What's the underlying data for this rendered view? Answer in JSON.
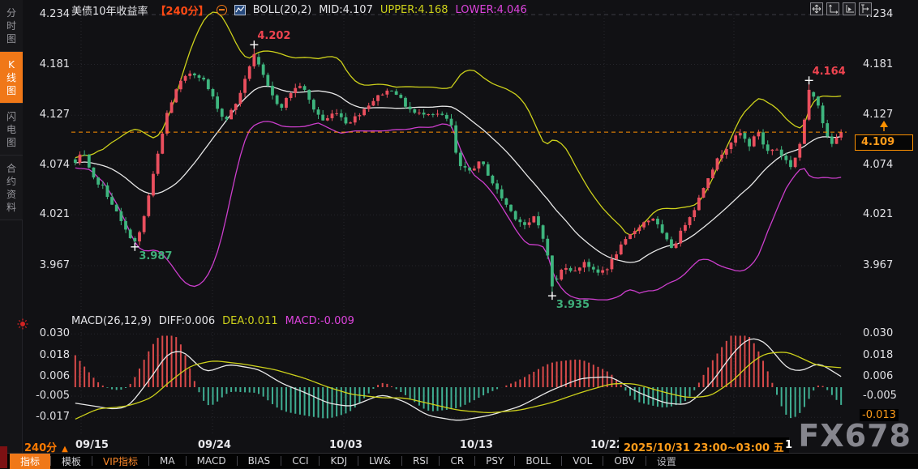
{
  "header": {
    "title": "美债10年收益率",
    "period_tag": "【240分】",
    "boll": "BOLL(20,2)",
    "mid": "MID:4.107",
    "upper": "UPPER:4.168",
    "lower": "LOWER:4.046"
  },
  "sidebar": {
    "active": 1,
    "items": [
      "分时图",
      "K线图",
      "闪电图",
      "合约资料"
    ]
  },
  "axes": {
    "main_left": [
      "4.234",
      "4.181",
      "4.127",
      "4.074",
      "4.021",
      "3.967"
    ],
    "main_right": [
      "4.234",
      "4.181",
      "4.127",
      "4.074",
      "4.021",
      "3.967"
    ],
    "macd_left": [
      "0.030",
      "0.018",
      "0.006",
      "-0.005",
      "-0.017"
    ],
    "macd_right": [
      "0.030",
      "0.018",
      "0.006",
      "-0.005"
    ],
    "macd_right_badge": "-0.013"
  },
  "price_badge": "4.109",
  "macd_header": {
    "label": "MACD(26,12,9)",
    "diff": "DIFF:0.006",
    "dea": "DEA:0.011",
    "macd": "MACD:-0.009"
  },
  "footer": {
    "period": "240分",
    "dates": [
      "09/15",
      "09/24",
      "10/03",
      "10/13",
      "10/22"
    ],
    "crosshair_badge": "2025/10/31 23:00~03:00 五",
    "trailing": "1",
    "watermark": "FX678"
  },
  "toolbar": {
    "items": [
      {
        "label": "指标",
        "state": "selected"
      },
      {
        "label": "模板"
      },
      {
        "label": "VIP指标",
        "state": "vip"
      },
      {
        "label": "MA"
      },
      {
        "label": "MACD"
      },
      {
        "label": "BIAS"
      },
      {
        "label": "CCI"
      },
      {
        "label": "KDJ"
      },
      {
        "label": "LW&"
      },
      {
        "label": "RSI"
      },
      {
        "label": "CR"
      },
      {
        "label": "PSY"
      },
      {
        "label": "BOLL"
      },
      {
        "label": "VOL"
      },
      {
        "label": "OBV"
      },
      {
        "label": "设置",
        "state": "dim"
      }
    ]
  },
  "colors": {
    "up": "#ea4f5e",
    "down": "#3eb57e",
    "boll_upper": "#cdd11b",
    "boll_mid": "#e8e8e8",
    "boll_lower": "#cc3ecc",
    "hist_up": "#d94a4a",
    "hist_down": "#3fae92",
    "diff_line": "#e8e8e8",
    "dea_line": "#cdd11b",
    "accent_orange": "#ff9100",
    "grid": "#26262c",
    "cross": "#ffffff",
    "ann_high": "#ef4450",
    "ann_low": "#3fae7a"
  },
  "chart_data": [
    {
      "type": "candlestick",
      "title": "美债10年收益率 240分",
      "y_ticks": [
        4.234,
        4.181,
        4.127,
        4.074,
        4.021,
        3.967
      ],
      "x_ticks": [
        "09/15",
        "09/24",
        "10/03",
        "10/13",
        "10/22",
        "10/31"
      ],
      "ylim": [
        3.935,
        4.234
      ],
      "last_price": 4.109,
      "boll": {
        "period": 20,
        "dev": 2,
        "mid": 4.107,
        "upper": 4.168,
        "lower": 4.046
      },
      "key_points": [
        {
          "t": 0.232,
          "price": 4.202,
          "label": "4.202",
          "kind": "high"
        },
        {
          "t": 0.08,
          "price": 3.987,
          "label": "3.987",
          "kind": "low"
        },
        {
          "t": 0.625,
          "price": 3.935,
          "label": "3.935",
          "kind": "low"
        },
        {
          "t": 0.958,
          "price": 4.164,
          "label": "4.164",
          "kind": "high"
        }
      ],
      "price_path": [
        [
          0,
          4.076
        ],
        [
          0.01,
          4.088
        ],
        [
          0.022,
          4.06
        ],
        [
          0.035,
          4.052
        ],
        [
          0.05,
          4.03
        ],
        [
          0.065,
          4.005
        ],
        [
          0.08,
          3.99
        ],
        [
          0.09,
          4.02
        ],
        [
          0.105,
          4.075
        ],
        [
          0.12,
          4.13
        ],
        [
          0.135,
          4.16
        ],
        [
          0.15,
          4.172
        ],
        [
          0.165,
          4.168
        ],
        [
          0.18,
          4.145
        ],
        [
          0.195,
          4.12
        ],
        [
          0.21,
          4.14
        ],
        [
          0.222,
          4.165
        ],
        [
          0.232,
          4.192
        ],
        [
          0.242,
          4.175
        ],
        [
          0.255,
          4.15
        ],
        [
          0.268,
          4.135
        ],
        [
          0.282,
          4.152
        ],
        [
          0.295,
          4.16
        ],
        [
          0.31,
          4.135
        ],
        [
          0.325,
          4.12
        ],
        [
          0.34,
          4.132
        ],
        [
          0.355,
          4.118
        ],
        [
          0.37,
          4.128
        ],
        [
          0.385,
          4.14
        ],
        [
          0.4,
          4.15
        ],
        [
          0.415,
          4.155
        ],
        [
          0.43,
          4.138
        ],
        [
          0.445,
          4.128
        ],
        [
          0.46,
          4.13
        ],
        [
          0.475,
          4.128
        ],
        [
          0.49,
          4.12
        ],
        [
          0.5,
          4.072
        ],
        [
          0.515,
          4.068
        ],
        [
          0.53,
          4.078
        ],
        [
          0.545,
          4.055
        ],
        [
          0.56,
          4.035
        ],
        [
          0.575,
          4.018
        ],
        [
          0.59,
          4.008
        ],
        [
          0.6,
          4.02
        ],
        [
          0.612,
          3.995
        ],
        [
          0.625,
          3.945
        ],
        [
          0.638,
          3.968
        ],
        [
          0.652,
          3.96
        ],
        [
          0.665,
          3.972
        ],
        [
          0.68,
          3.958
        ],
        [
          0.695,
          3.965
        ],
        [
          0.71,
          3.985
        ],
        [
          0.725,
          4.0
        ],
        [
          0.74,
          4.012
        ],
        [
          0.755,
          4.018
        ],
        [
          0.768,
          3.998
        ],
        [
          0.78,
          3.985
        ],
        [
          0.795,
          4.01
        ],
        [
          0.81,
          4.03
        ],
        [
          0.825,
          4.06
        ],
        [
          0.84,
          4.082
        ],
        [
          0.855,
          4.098
        ],
        [
          0.868,
          4.108
        ],
        [
          0.88,
          4.095
        ],
        [
          0.892,
          4.11
        ],
        [
          0.902,
          4.088
        ],
        [
          0.915,
          4.092
        ],
        [
          0.925,
          4.082
        ],
        [
          0.935,
          4.072
        ],
        [
          0.945,
          4.092
        ],
        [
          0.952,
          4.12
        ],
        [
          0.958,
          4.152
        ],
        [
          0.965,
          4.148
        ],
        [
          0.972,
          4.135
        ],
        [
          0.98,
          4.105
        ],
        [
          0.988,
          4.096
        ],
        [
          1,
          4.109
        ]
      ]
    },
    {
      "type": "macd",
      "params": [
        26,
        12,
        9
      ],
      "diff": 0.006,
      "dea": 0.011,
      "macd": -0.009,
      "y_ticks": [
        0.03,
        0.018,
        0.006,
        -0.005,
        -0.017
      ],
      "diff_path": [
        [
          0,
          -0.009
        ],
        [
          0.03,
          -0.011
        ],
        [
          0.05,
          -0.0125
        ],
        [
          0.07,
          -0.011
        ],
        [
          0.1,
          0.006
        ],
        [
          0.12,
          0.019
        ],
        [
          0.14,
          0.021
        ],
        [
          0.17,
          0.008
        ],
        [
          0.2,
          0.013
        ],
        [
          0.24,
          0.01
        ],
        [
          0.27,
          0.002
        ],
        [
          0.3,
          -0.003
        ],
        [
          0.33,
          -0.009
        ],
        [
          0.36,
          -0.011
        ],
        [
          0.4,
          -0.004
        ],
        [
          0.43,
          -0.008
        ],
        [
          0.46,
          -0.016
        ],
        [
          0.5,
          -0.019
        ],
        [
          0.54,
          -0.016
        ],
        [
          0.58,
          -0.011
        ],
        [
          0.62,
          -0.002
        ],
        [
          0.66,
          0.005
        ],
        [
          0.7,
          0.006
        ],
        [
          0.73,
          -0.002
        ],
        [
          0.77,
          -0.009
        ],
        [
          0.8,
          -0.01
        ],
        [
          0.83,
          0.002
        ],
        [
          0.86,
          0.02
        ],
        [
          0.88,
          0.028
        ],
        [
          0.9,
          0.026
        ],
        [
          0.93,
          0.01
        ],
        [
          0.95,
          0.009
        ],
        [
          0.97,
          0.014
        ],
        [
          1,
          0.006
        ]
      ],
      "dea_path": [
        [
          0,
          -0.018
        ],
        [
          0.03,
          -0.012
        ],
        [
          0.05,
          -0.0115
        ],
        [
          0.07,
          -0.0105
        ],
        [
          0.1,
          -0.006
        ],
        [
          0.12,
          0.002
        ],
        [
          0.15,
          0.012
        ],
        [
          0.18,
          0.015
        ],
        [
          0.22,
          0.013
        ],
        [
          0.26,
          0.01
        ],
        [
          0.3,
          0.005
        ],
        [
          0.33,
          0
        ],
        [
          0.36,
          -0.004
        ],
        [
          0.4,
          -0.006
        ],
        [
          0.43,
          -0.006
        ],
        [
          0.46,
          -0.009
        ],
        [
          0.5,
          -0.013
        ],
        [
          0.54,
          -0.0145
        ],
        [
          0.58,
          -0.013
        ],
        [
          0.62,
          -0.009
        ],
        [
          0.66,
          -0.003
        ],
        [
          0.7,
          0.002
        ],
        [
          0.73,
          0.002
        ],
        [
          0.77,
          -0.003
        ],
        [
          0.8,
          -0.006
        ],
        [
          0.83,
          -0.005
        ],
        [
          0.86,
          0.004
        ],
        [
          0.88,
          0.013
        ],
        [
          0.9,
          0.019
        ],
        [
          0.93,
          0.02
        ],
        [
          0.95,
          0.016
        ],
        [
          0.97,
          0.012
        ],
        [
          1,
          0.011
        ]
      ]
    }
  ]
}
